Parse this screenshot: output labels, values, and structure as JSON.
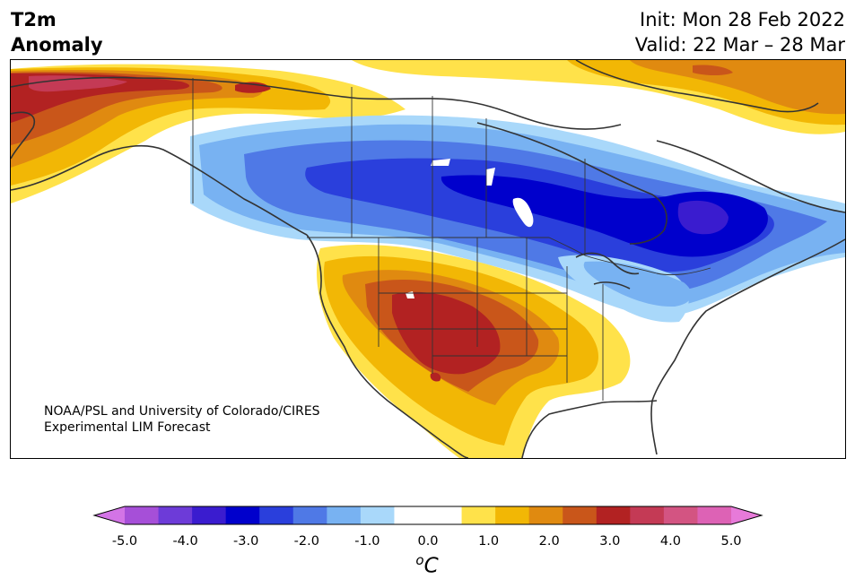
{
  "header": {
    "title_line1": "T2m",
    "title_line2": "Anomaly",
    "init_text": "Init: Mon 28 Feb 2022",
    "valid_text": "Valid: 22 Mar – 28 Mar"
  },
  "credit": {
    "line1": "NOAA/PSL and University of Colorado/CIRES",
    "line2": "Experimental LIM Forecast"
  },
  "colorbar": {
    "colors": [
      "#d374e6",
      "#a64fd8",
      "#6d3bd8",
      "#3a1ccf",
      "#0000cc",
      "#2a3fdc",
      "#4f79e6",
      "#78b2f2",
      "#a9d8fa",
      "#ffffff",
      "#ffffff",
      "#ffe24a",
      "#f2b705",
      "#e08a10",
      "#c9561a",
      "#b22222",
      "#c43a55",
      "#d35482",
      "#dd62b5",
      "#e77ad9"
    ],
    "tick_labels": [
      "-5.0",
      "-4.0",
      "-3.0",
      "-2.0",
      "-1.0",
      "0.0",
      "1.0",
      "2.0",
      "3.0",
      "4.0",
      "5.0"
    ],
    "unit_symbol": "o",
    "unit_letter": "C"
  }
}
